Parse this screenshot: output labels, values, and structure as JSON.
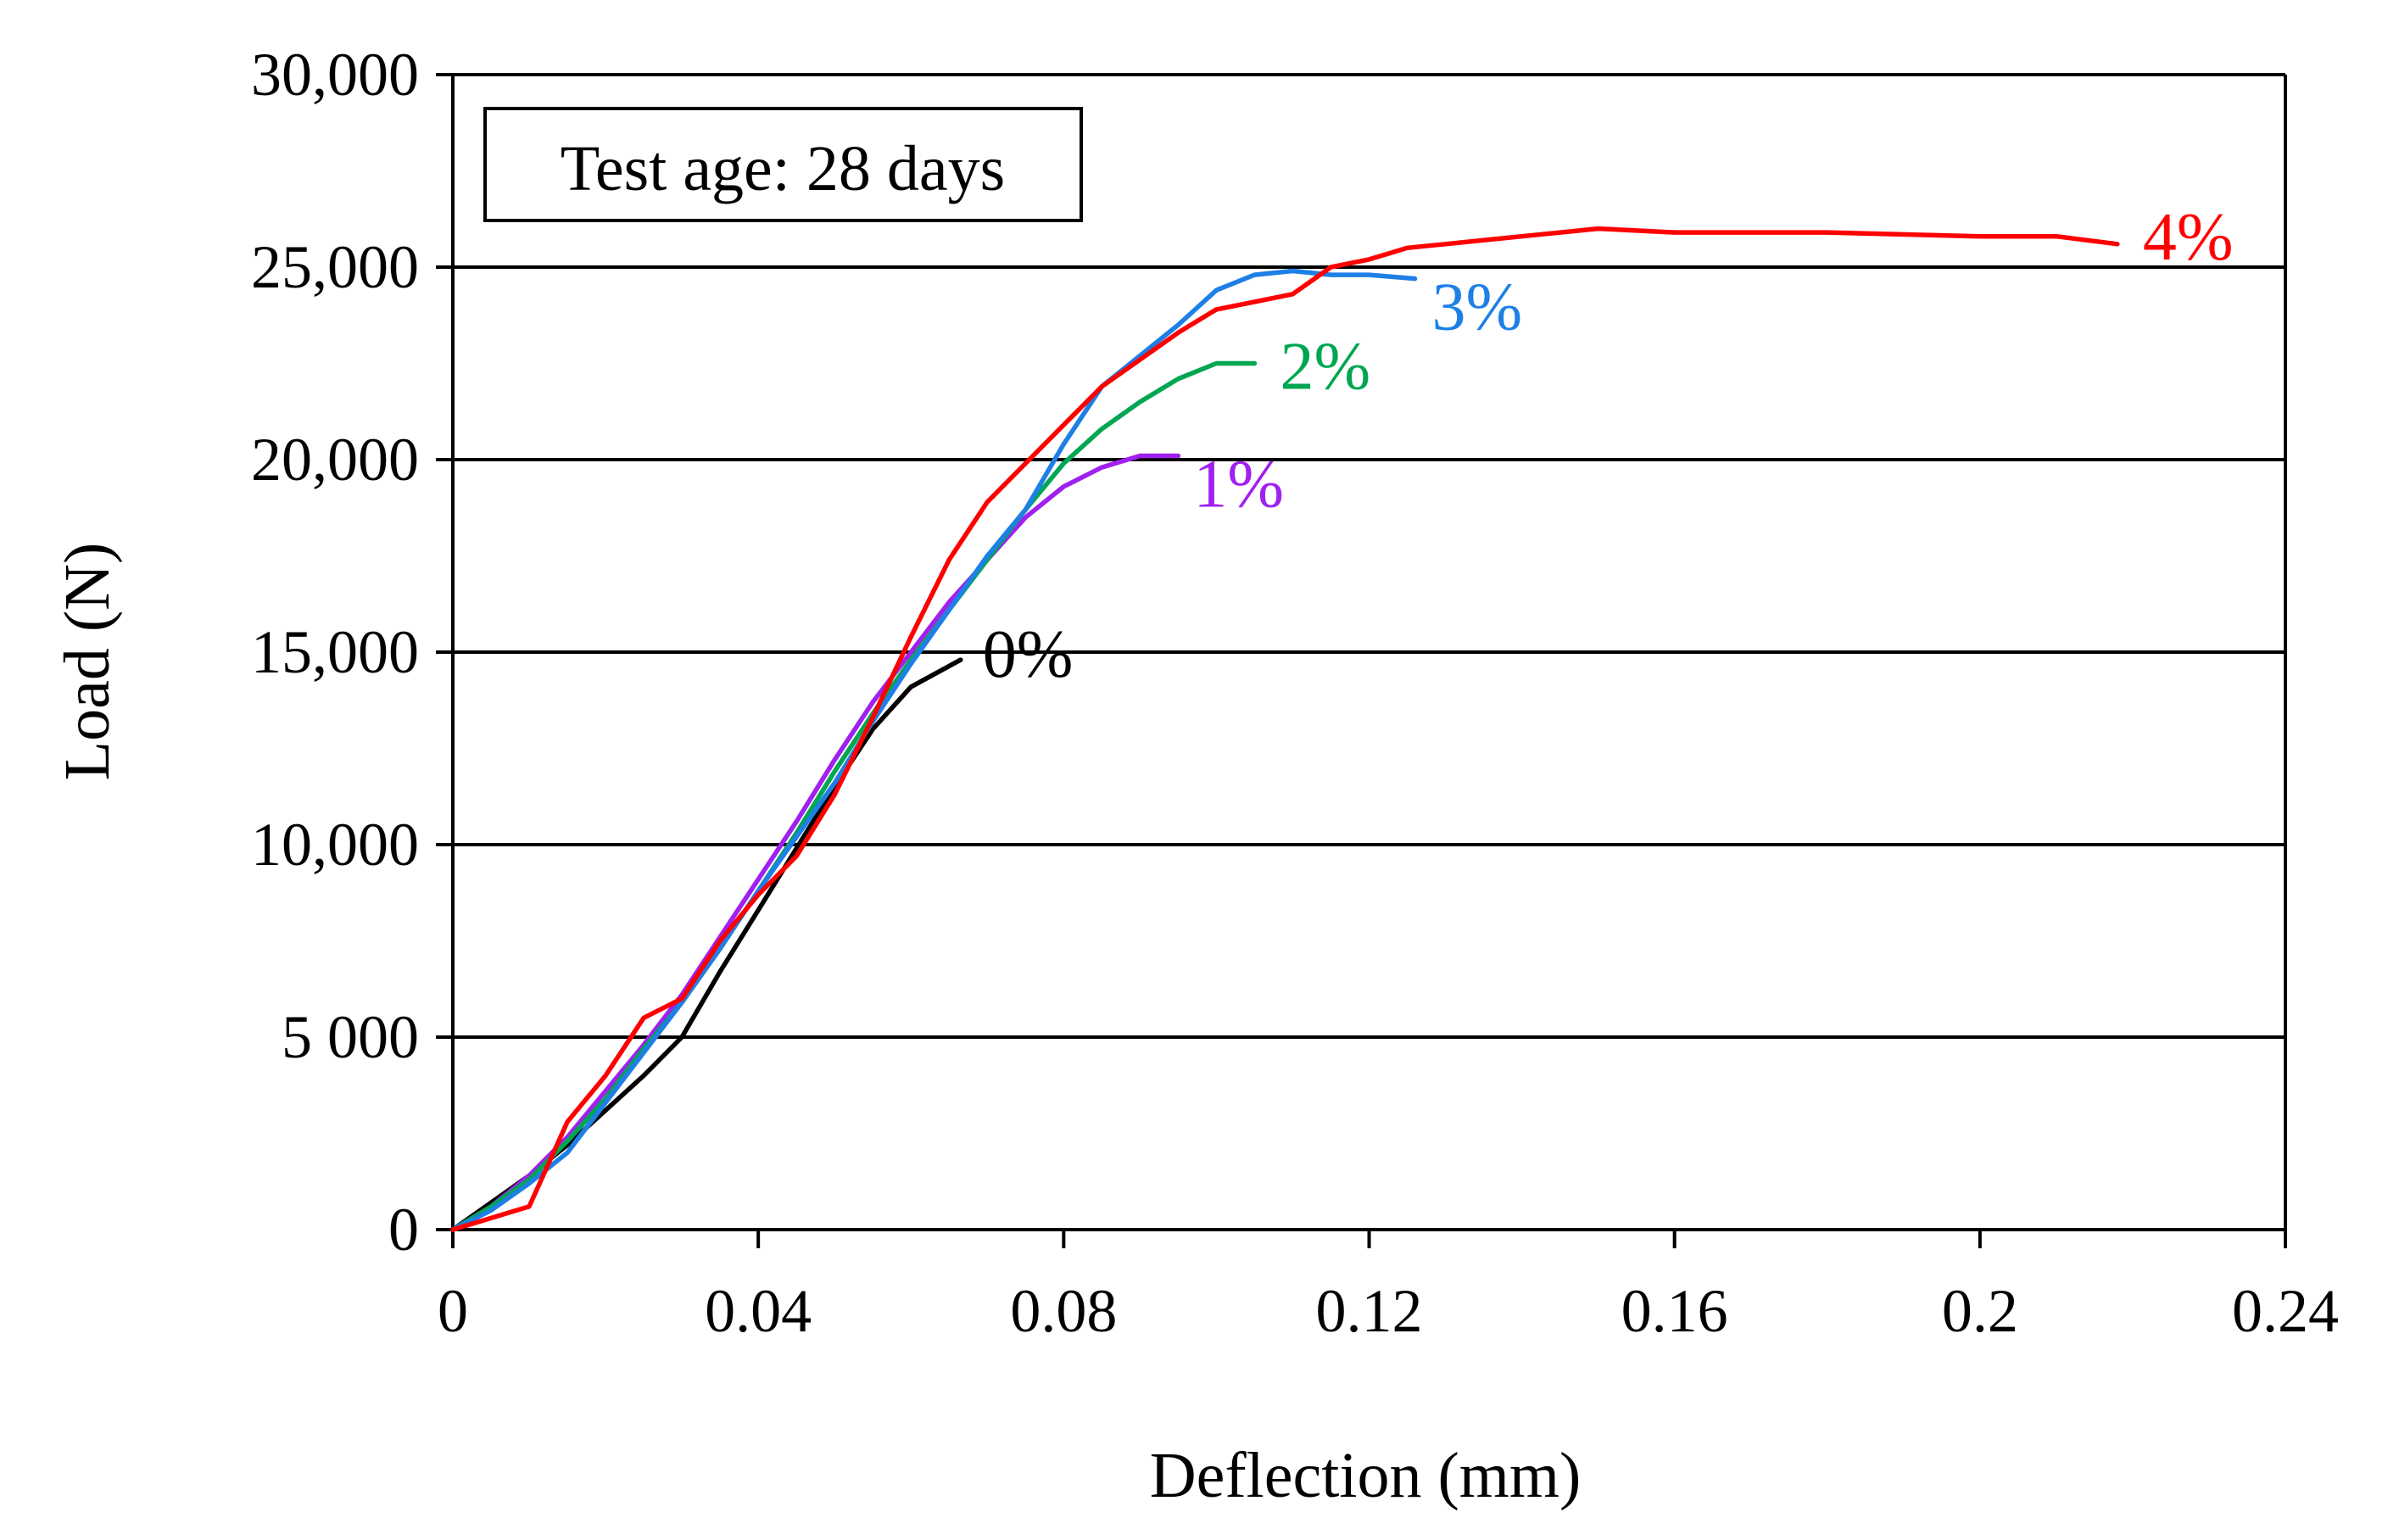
{
  "chart_data": {
    "type": "line",
    "xlabel": "Deflection (mm)",
    "ylabel": "Load (N)",
    "xlim": [
      0,
      0.24
    ],
    "ylim": [
      0,
      30000
    ],
    "x_ticks": [
      0,
      0.04,
      0.08,
      0.12,
      0.16,
      0.2,
      0.24
    ],
    "x_tick_labels": [
      "0",
      "0.04",
      "0.08",
      "0.12",
      "0.16",
      "0.2",
      "0.24"
    ],
    "y_ticks": [
      0,
      5000,
      10000,
      15000,
      20000,
      25000,
      30000
    ],
    "y_tick_labels": [
      "0",
      "5 000",
      "10,000",
      "15,000",
      "20,000",
      "25,000",
      "30,000"
    ],
    "grid": "horizontal",
    "annotation": "Test age: 28 days",
    "series": [
      {
        "name": "0%",
        "color": "#000000",
        "x": [
          0,
          0.005,
          0.01,
          0.015,
          0.02,
          0.025,
          0.03,
          0.035,
          0.04,
          0.045,
          0.05,
          0.055,
          0.06,
          0.0665
        ],
        "y": [
          0,
          700,
          1400,
          2200,
          3100,
          4000,
          5000,
          6700,
          8300,
          9900,
          11500,
          13000,
          14100,
          14800
        ]
      },
      {
        "name": "1%",
        "color": "#A020F0",
        "x": [
          0,
          0.005,
          0.01,
          0.015,
          0.02,
          0.025,
          0.03,
          0.035,
          0.04,
          0.045,
          0.05,
          0.055,
          0.06,
          0.065,
          0.07,
          0.075,
          0.08,
          0.085,
          0.09,
          0.095
        ],
        "y": [
          0,
          600,
          1400,
          2400,
          3600,
          4800,
          6100,
          7600,
          9100,
          10600,
          12200,
          13700,
          15000,
          16300,
          17400,
          18500,
          19300,
          19800,
          20100,
          20100
        ]
      },
      {
        "name": "2%",
        "color": "#00A651",
        "x": [
          0,
          0.005,
          0.01,
          0.015,
          0.02,
          0.025,
          0.03,
          0.035,
          0.04,
          0.045,
          0.05,
          0.055,
          0.06,
          0.065,
          0.07,
          0.075,
          0.08,
          0.085,
          0.09,
          0.095,
          0.1,
          0.105
        ],
        "y": [
          0,
          600,
          1300,
          2300,
          3400,
          4700,
          5900,
          7300,
          8800,
          10300,
          11900,
          13400,
          14800,
          16100,
          17400,
          18700,
          19900,
          20800,
          21500,
          22100,
          22500,
          22500
        ]
      },
      {
        "name": "3%",
        "color": "#1E7FE6",
        "x": [
          0,
          0.005,
          0.01,
          0.015,
          0.02,
          0.025,
          0.03,
          0.035,
          0.04,
          0.045,
          0.05,
          0.055,
          0.06,
          0.065,
          0.07,
          0.075,
          0.08,
          0.085,
          0.09,
          0.095,
          0.1,
          0.105,
          0.11,
          0.115,
          0.12,
          0.126
        ],
        "y": [
          0,
          500,
          1200,
          2000,
          3300,
          4600,
          5900,
          7300,
          8800,
          10200,
          11600,
          13200,
          14700,
          16100,
          17500,
          18700,
          20400,
          21900,
          22700,
          23500,
          24400,
          24800,
          24900,
          24800,
          24800,
          24700
        ]
      },
      {
        "name": "4%",
        "color": "#FF0000",
        "x": [
          0,
          0.005,
          0.01,
          0.015,
          0.02,
          0.025,
          0.03,
          0.035,
          0.04,
          0.045,
          0.05,
          0.055,
          0.06,
          0.065,
          0.07,
          0.075,
          0.08,
          0.085,
          0.09,
          0.095,
          0.1,
          0.105,
          0.11,
          0.115,
          0.12,
          0.125,
          0.13,
          0.14,
          0.15,
          0.16,
          0.18,
          0.2,
          0.21,
          0.218
        ],
        "y": [
          0,
          300,
          600,
          2800,
          4000,
          5500,
          6000,
          7500,
          8700,
          9700,
          11300,
          13300,
          15400,
          17400,
          18900,
          19900,
          20900,
          21900,
          22600,
          23300,
          23900,
          24100,
          24300,
          25000,
          25200,
          25500,
          25600,
          25800,
          26000,
          25900,
          25900,
          25800,
          25800,
          25600
        ]
      }
    ]
  }
}
